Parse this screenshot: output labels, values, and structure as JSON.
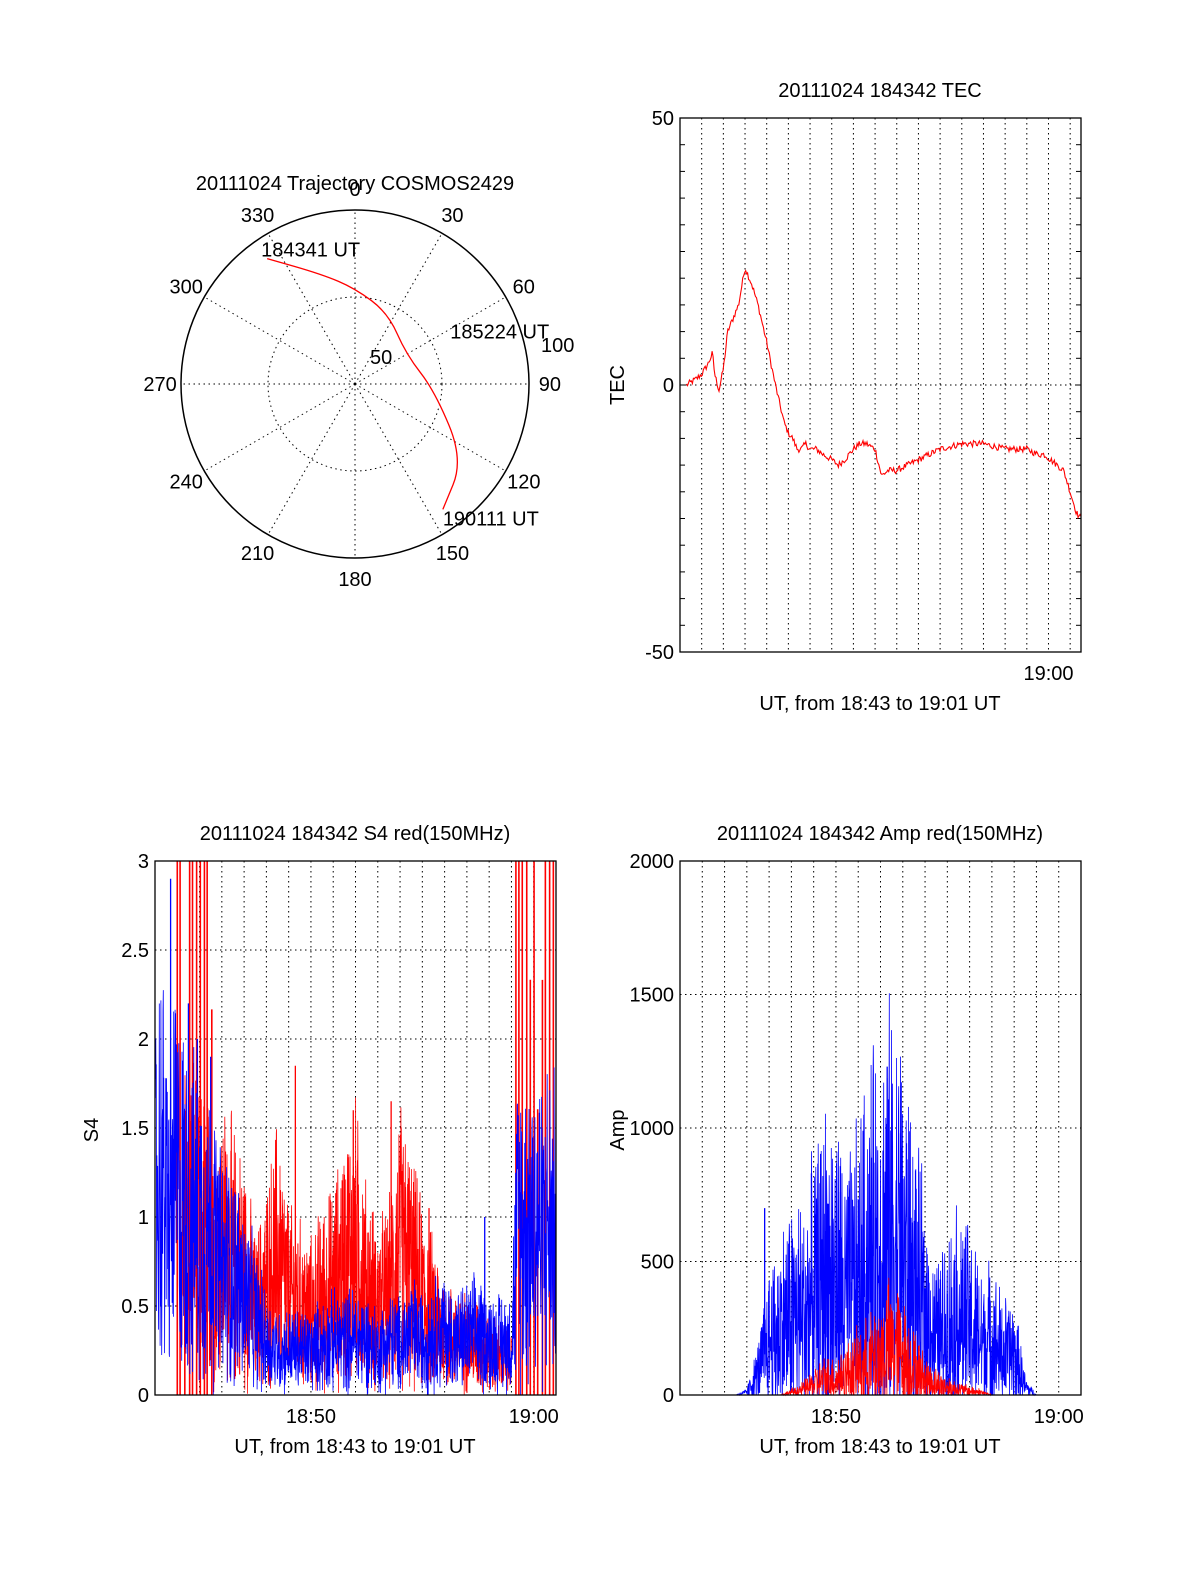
{
  "chart_data": [
    {
      "id": "trajectory",
      "type": "polar",
      "title": "20111024 Trajectory COSMOS2429",
      "angle_labels": [
        "0",
        "30",
        "60",
        "90",
        "120",
        "150",
        "180",
        "210",
        "240",
        "270",
        "300",
        "330"
      ],
      "radial_labels": [
        "50",
        "100"
      ],
      "radial_ticks": [
        50,
        100
      ],
      "track": {
        "color": "#ff0000",
        "points": [
          {
            "az": 325,
            "r": 88
          },
          {
            "az": 343,
            "r": 66
          },
          {
            "az": 0,
            "r": 55
          },
          {
            "az": 25,
            "r": 45
          },
          {
            "az": 60,
            "r": 34
          },
          {
            "az": 95,
            "r": 46
          },
          {
            "az": 125,
            "r": 76
          },
          {
            "az": 145,
            "r": 88
          }
        ]
      },
      "annotations": [
        {
          "text": "184341 UT",
          "az": 325,
          "r": 88
        },
        {
          "text": "185224 UT",
          "az": 60,
          "r": 34
        },
        {
          "text": "190111 UT",
          "az": 145,
          "r": 88
        }
      ]
    },
    {
      "id": "tec",
      "type": "line",
      "title": "20111024 184342 TEC",
      "xlabel": "UT, from 18:43 to 19:01 UT",
      "ylabel": "TEC",
      "xlim": [
        0,
        18.5
      ],
      "ylim": [
        -50,
        50
      ],
      "x_tick_labels": [
        {
          "value": 17,
          "label": "19:00"
        }
      ],
      "y_ticks": [
        -50,
        0,
        50
      ],
      "series": [
        {
          "color": "#ff0000",
          "x": [
            0.3,
            0.7,
            1.0,
            1.3,
            1.5,
            1.6,
            1.8,
            2.0,
            2.2,
            2.5,
            2.7,
            3.0,
            3.3,
            3.6,
            4.0,
            4.4,
            4.8,
            5.0,
            5.2,
            5.4,
            5.6,
            5.8,
            6.0,
            6.3,
            6.6,
            7.0,
            7.3,
            7.6,
            8.0,
            8.3,
            8.6,
            9.0,
            9.3,
            9.6,
            9.8,
            10.0,
            10.5,
            11.0,
            12.0,
            13.0,
            14.0,
            15.0,
            15.5,
            16.0,
            16.5,
            16.8,
            17.1,
            17.4,
            17.7,
            18.0,
            18.3,
            18.5
          ],
          "y": [
            0,
            1,
            2,
            4,
            6,
            2,
            -1,
            3,
            10,
            13,
            15,
            22,
            19,
            15,
            8,
            0,
            -7,
            -9,
            -10,
            -12,
            -12,
            -11,
            -12,
            -12,
            -13,
            -14,
            -15,
            -14,
            -12,
            -11,
            -11,
            -12,
            -17,
            -16,
            -16,
            -16,
            -15,
            -14,
            -12,
            -11,
            -11,
            -12,
            -12,
            -12,
            -13,
            -13,
            -14,
            -15,
            -16,
            -20,
            -24,
            -25
          ]
        }
      ]
    },
    {
      "id": "s4",
      "type": "line",
      "title": "20111024 184342 S4 red(150MHz)",
      "xlabel": "UT, from 18:43 to 19:01 UT",
      "ylabel": "S4",
      "xlim": [
        0,
        18
      ],
      "ylim": [
        0,
        3
      ],
      "x_tick_labels": [
        {
          "value": 7,
          "label": "18:50"
        },
        {
          "value": 17,
          "label": "19:00"
        }
      ],
      "y_ticks": [
        0,
        0.5,
        1,
        1.5,
        2,
        2.5,
        3
      ],
      "y_tick_labels": [
        "0",
        "0.5",
        "1",
        "1.5",
        "2",
        "2.5",
        "3"
      ],
      "series": [
        {
          "color": "#ff0000",
          "x": [
            1.2,
            1.6,
            2.0,
            2.4,
            2.8,
            3.2,
            3.6,
            4.0,
            4.5,
            5.0,
            5.5,
            6.0,
            6.5,
            7.0,
            7.5,
            8.0,
            8.5,
            9.0,
            9.5,
            10.0,
            10.5,
            11.0,
            11.5,
            12.0,
            12.5,
            13.0,
            13.5,
            14.0,
            14.5,
            15.0,
            15.5,
            16.0
          ],
          "y": [
            1.0,
            1.05,
            0.9,
            0.85,
            0.8,
            0.85,
            0.75,
            0.7,
            0.45,
            0.6,
            0.8,
            0.55,
            0.5,
            0.45,
            0.55,
            0.6,
            0.75,
            0.85,
            0.6,
            0.5,
            0.55,
            0.85,
            0.7,
            0.55,
            0.45,
            0.35,
            0.3,
            0.3,
            0.3,
            0.25,
            0.2,
            0.2
          ],
          "peaks": [
            {
              "x": 6.3,
              "y": 1.85
            },
            {
              "x": 8.9,
              "y": 1.6
            },
            {
              "x": 10.6,
              "y": 1.65
            },
            {
              "x": 12.3,
              "y": 1.05
            }
          ],
          "bursts": [
            {
              "from": 1.0,
              "to": 2.7
            },
            {
              "from": 16.2,
              "to": 18
            }
          ]
        },
        {
          "color": "#0000ff",
          "x": [
            0,
            0.3,
            0.6,
            0.9,
            1.2,
            1.5,
            1.8,
            2.1,
            2.4,
            2.7,
            3.0,
            3.4,
            3.8,
            4.2,
            4.6,
            5.0,
            5.5,
            6.0,
            6.5,
            7.0,
            7.5,
            8.0,
            8.5,
            9.0,
            9.5,
            10.0,
            10.5,
            11.0,
            11.5,
            12.0,
            12.5,
            13.0,
            13.5,
            14.0,
            14.5,
            15.0,
            15.5,
            16.0,
            16.3,
            16.6,
            17.0,
            17.5,
            18.0
          ],
          "y": [
            1.1,
            1.3,
            1.0,
            1.2,
            1.1,
            1.05,
            0.95,
            1.0,
            0.9,
            0.8,
            0.7,
            0.7,
            0.6,
            0.5,
            0.4,
            0.3,
            0.25,
            0.25,
            0.25,
            0.25,
            0.28,
            0.3,
            0.3,
            0.32,
            0.3,
            0.25,
            0.3,
            0.28,
            0.35,
            0.3,
            0.35,
            0.35,
            0.3,
            0.32,
            0.35,
            0.3,
            0.3,
            0.3,
            1.0,
            0.95,
            1.0,
            0.95,
            0.95
          ],
          "peaks": [
            {
              "x": 0.7,
              "y": 2.9
            },
            {
              "x": 1.5,
              "y": 2.2
            },
            {
              "x": 1.9,
              "y": 2.0
            },
            {
              "x": 2.5,
              "y": 1.9
            },
            {
              "x": 14.8,
              "y": 1.0
            }
          ]
        }
      ]
    },
    {
      "id": "amp",
      "type": "line",
      "title": "20111024 184342 Amp red(150MHz)",
      "xlabel": "UT, from 18:43 to 19:01 UT",
      "ylabel": "Amp",
      "xlim": [
        0,
        18
      ],
      "ylim": [
        0,
        2000
      ],
      "x_tick_labels": [
        {
          "value": 7,
          "label": "18:50"
        },
        {
          "value": 17,
          "label": "19:00"
        }
      ],
      "y_ticks": [
        0,
        500,
        1000,
        1500,
        2000
      ],
      "y_tick_labels": [
        "0",
        "500",
        "1000",
        "1500",
        "2000"
      ],
      "series": [
        {
          "color": "#0000ff",
          "x": [
            0,
            2.5,
            3.0,
            3.5,
            4.0,
            4.5,
            5.0,
            5.5,
            6.0,
            6.5,
            7.0,
            7.5,
            8.0,
            8.5,
            9.0,
            9.5,
            10.0,
            10.5,
            11.0,
            11.5,
            12.0,
            12.5,
            13.0,
            13.5,
            14.0,
            14.5,
            15.0,
            15.5,
            16.0,
            18.0
          ],
          "y": [
            0,
            0,
            10,
            80,
            200,
            250,
            300,
            300,
            350,
            450,
            420,
            350,
            420,
            500,
            550,
            600,
            550,
            400,
            300,
            200,
            250,
            300,
            250,
            200,
            200,
            150,
            150,
            30,
            0,
            0
          ],
          "peaks": [
            {
              "x": 3.8,
              "y": 700
            },
            {
              "x": 5.9,
              "y": 830
            },
            {
              "x": 7.2,
              "y": 760
            },
            {
              "x": 8.7,
              "y": 870
            },
            {
              "x": 9.3,
              "y": 1230
            },
            {
              "x": 9.9,
              "y": 980
            },
            {
              "x": 11.0,
              "y": 400
            },
            {
              "x": 12.0,
              "y": 380
            },
            {
              "x": 13.0,
              "y": 360
            },
            {
              "x": 14.8,
              "y": 270
            }
          ]
        },
        {
          "color": "#ff0000",
          "x": [
            0,
            4.5,
            5.0,
            5.5,
            6.0,
            6.5,
            7.0,
            7.5,
            8.0,
            8.5,
            9.0,
            9.5,
            10.0,
            10.5,
            11.0,
            11.5,
            12.0,
            12.5,
            13.0,
            13.5,
            14.0,
            18.0
          ],
          "y": [
            0,
            0,
            10,
            20,
            40,
            60,
            60,
            80,
            100,
            120,
            150,
            180,
            150,
            100,
            60,
            40,
            30,
            20,
            15,
            10,
            0,
            0
          ],
          "peaks": [
            {
              "x": 7.5,
              "y": 150
            },
            {
              "x": 9.5,
              "y": 230
            },
            {
              "x": 10.0,
              "y": 200
            }
          ]
        }
      ]
    }
  ]
}
